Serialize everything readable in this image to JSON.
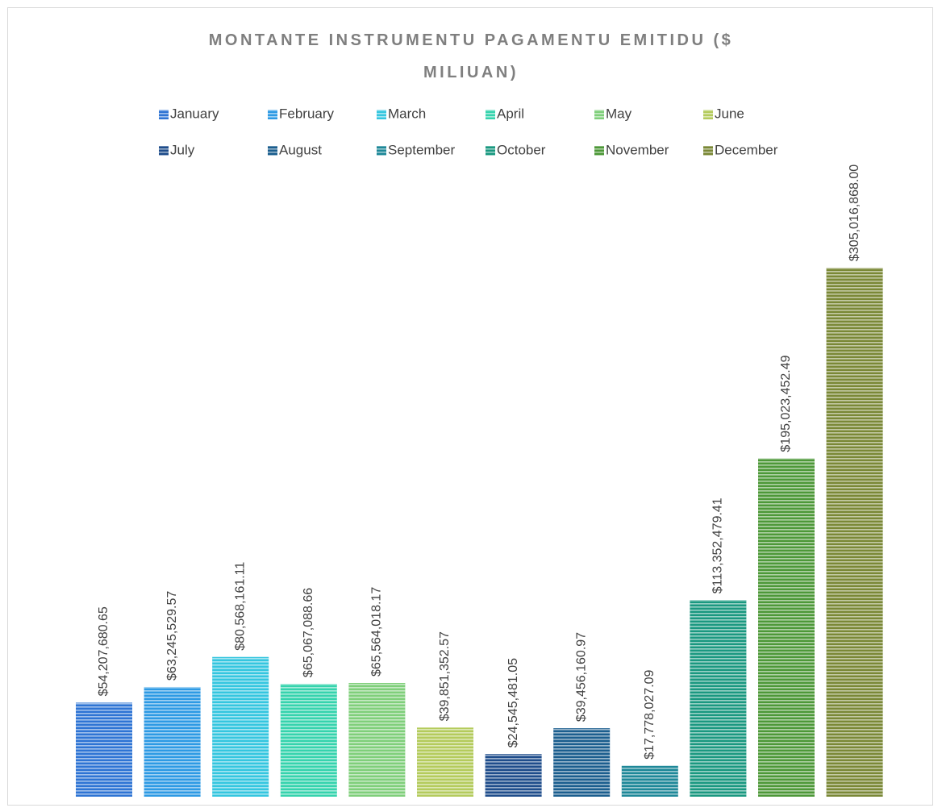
{
  "chart_data": {
    "type": "bar",
    "title": "MONTANTE INSTRUMENTU PAGAMENTU EMITIDU ($ MILIUAN)",
    "series": [
      {
        "name": "January",
        "color": "#2e74d4",
        "values": [
          54207680.65
        ],
        "value_labels": [
          "$54,207,680.65"
        ]
      },
      {
        "name": "February",
        "color": "#2d9ae4",
        "values": [
          63245529.57
        ],
        "value_labels": [
          "$63,245,529.57"
        ]
      },
      {
        "name": "March",
        "color": "#34c6df",
        "values": [
          80568161.11
        ],
        "value_labels": [
          "$80,568,161.11"
        ]
      },
      {
        "name": "April",
        "color": "#35d3ad",
        "values": [
          65067088.66
        ],
        "value_labels": [
          "$65,067,088.66"
        ]
      },
      {
        "name": "May",
        "color": "#7fcf7a",
        "values": [
          65564018.17
        ],
        "value_labels": [
          "$65,564,018.17"
        ]
      },
      {
        "name": "June",
        "color": "#b4cb5c",
        "values": [
          39851352.57
        ],
        "value_labels": [
          "$39,851,352.57"
        ]
      },
      {
        "name": "July",
        "color": "#1f4d8b",
        "values": [
          24545481.05
        ],
        "value_labels": [
          "$24,545,481.05"
        ]
      },
      {
        "name": "August",
        "color": "#1b5e8e",
        "values": [
          39456160.97
        ],
        "value_labels": [
          "$39,456,160.97"
        ]
      },
      {
        "name": "September",
        "color": "#1e8898",
        "values": [
          17778027.09
        ],
        "value_labels": [
          "$17,778,027.09"
        ]
      },
      {
        "name": "October",
        "color": "#1a9880",
        "values": [
          113352479.41
        ],
        "value_labels": [
          "$113,352,479.41"
        ]
      },
      {
        "name": "November",
        "color": "#4d9838",
        "values": [
          195023452.49
        ],
        "value_labels": [
          "$195,023,452.49"
        ]
      },
      {
        "name": "December",
        "color": "#7a8836",
        "values": [
          305016868.0
        ],
        "value_labels": [
          "$305,016,868.00"
        ]
      }
    ]
  }
}
